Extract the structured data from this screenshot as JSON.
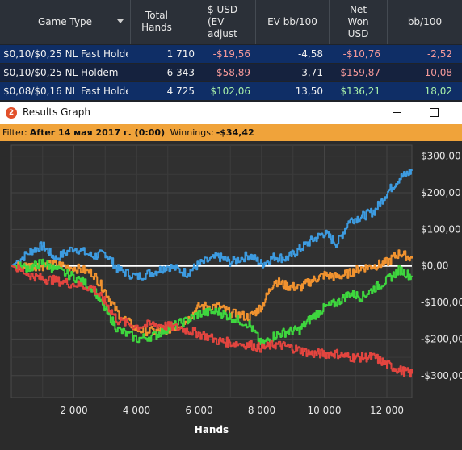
{
  "table": {
    "columns": [
      {
        "label": "Game Type"
      },
      {
        "label": "Total\nHands"
      },
      {
        "label": "$ USD\n(EV\nadjust"
      },
      {
        "label": "EV bb/100"
      },
      {
        "label": "Net\nWon\nUSD"
      },
      {
        "label": "bb/100"
      }
    ],
    "rows": [
      {
        "game": "$0,10/$0,25 NL Fast Holdei",
        "hands": "1 710",
        "usd_ev": "-$19,56",
        "ev_bb100": "-4,58",
        "net_won": "-$10,76",
        "bb100": "-2,52"
      },
      {
        "game": "$0,10/$0,25 NL Holdem",
        "hands": "6 343",
        "usd_ev": "-$58,89",
        "ev_bb100": "-3,71",
        "net_won": "-$159,87",
        "bb100": "-10,08"
      },
      {
        "game": "$0,08/$0,16 NL Fast Holdei",
        "hands": "4 725",
        "usd_ev": "$102,06",
        "ev_bb100": "13,50",
        "net_won": "$136,21",
        "bb100": "18,02"
      }
    ]
  },
  "window": {
    "title": "Results Graph",
    "icon_letter": "2"
  },
  "filter": {
    "label": "Filter:",
    "value": "After 14 мая 2017 г. (0:00)",
    "winnings_label": "Winnings:",
    "winnings_value": "-$34,42"
  },
  "chart_data": {
    "type": "line",
    "xlabel": "Hands",
    "ylabel": "",
    "x_ticks": [
      "2 000",
      "4 000",
      "6 000",
      "8 000",
      "10 000",
      "12 000"
    ],
    "y_ticks": [
      "$300,00",
      "$200,00",
      "$100,00",
      "$0,00",
      "-$100,00",
      "-$200,00",
      "-$300,00"
    ],
    "xlim": [
      0,
      12800
    ],
    "ylim": [
      -360,
      330
    ],
    "grid": true,
    "colors": {
      "blue": "#3d9be0",
      "orange": "#f0922f",
      "green": "#3ed63e",
      "red": "#e2453f",
      "zero": "#ffffff"
    },
    "series": [
      {
        "color": "#3d9be0",
        "x": [
          0,
          600,
          1000,
          1400,
          2000,
          2600,
          3000,
          3400,
          4000,
          4600,
          5000,
          5600,
          6000,
          6600,
          7000,
          7600,
          8000,
          8400,
          8800,
          9200,
          9600,
          10000,
          10400,
          10800,
          11200,
          11600,
          12000,
          12400,
          12800
        ],
        "y": [
          0,
          40,
          55,
          20,
          50,
          25,
          35,
          -10,
          -30,
          -15,
          0,
          -20,
          5,
          25,
          10,
          30,
          5,
          25,
          20,
          45,
          70,
          90,
          60,
          125,
          135,
          150,
          200,
          240,
          260
        ]
      },
      {
        "color": "#f0922f",
        "x": [
          0,
          600,
          1000,
          1400,
          2000,
          2600,
          3000,
          3400,
          4000,
          4600,
          5000,
          5600,
          6000,
          6600,
          7000,
          7600,
          8000,
          8400,
          8800,
          9200,
          9600,
          10000,
          10400,
          10800,
          11200,
          11600,
          12000,
          12400,
          12800
        ],
        "y": [
          0,
          0,
          0,
          5,
          -5,
          -20,
          -70,
          -130,
          -175,
          -180,
          -175,
          -150,
          -110,
          -110,
          -130,
          -140,
          -110,
          -40,
          -55,
          -60,
          -40,
          -25,
          -30,
          -20,
          -5,
          0,
          10,
          35,
          20
        ]
      },
      {
        "color": "#3ed63e",
        "x": [
          0,
          600,
          1000,
          1400,
          2000,
          2600,
          3000,
          3400,
          4000,
          4600,
          5000,
          5600,
          6000,
          6600,
          7000,
          7600,
          8000,
          8400,
          8800,
          9200,
          9600,
          10000,
          10400,
          10800,
          11200,
          11600,
          12000,
          12400,
          12800
        ],
        "y": [
          0,
          -5,
          10,
          -10,
          -30,
          -60,
          -120,
          -175,
          -200,
          -190,
          -170,
          -150,
          -130,
          -125,
          -140,
          -160,
          -215,
          -190,
          -180,
          -175,
          -140,
          -115,
          -100,
          -75,
          -85,
          -60,
          -40,
          -10,
          -30
        ]
      },
      {
        "color": "#e2453f",
        "x": [
          0,
          600,
          1000,
          1400,
          2000,
          2600,
          3000,
          3400,
          4000,
          4600,
          5000,
          5600,
          6000,
          6600,
          7000,
          7600,
          8000,
          8400,
          8800,
          9200,
          9600,
          10000,
          10400,
          10800,
          11200,
          11600,
          12000,
          12400,
          12800
        ],
        "y": [
          0,
          -25,
          -35,
          -40,
          -50,
          -60,
          -100,
          -150,
          -165,
          -160,
          -165,
          -175,
          -185,
          -205,
          -210,
          -215,
          -225,
          -215,
          -220,
          -230,
          -240,
          -240,
          -240,
          -250,
          -250,
          -250,
          -270,
          -285,
          -295
        ]
      }
    ]
  }
}
